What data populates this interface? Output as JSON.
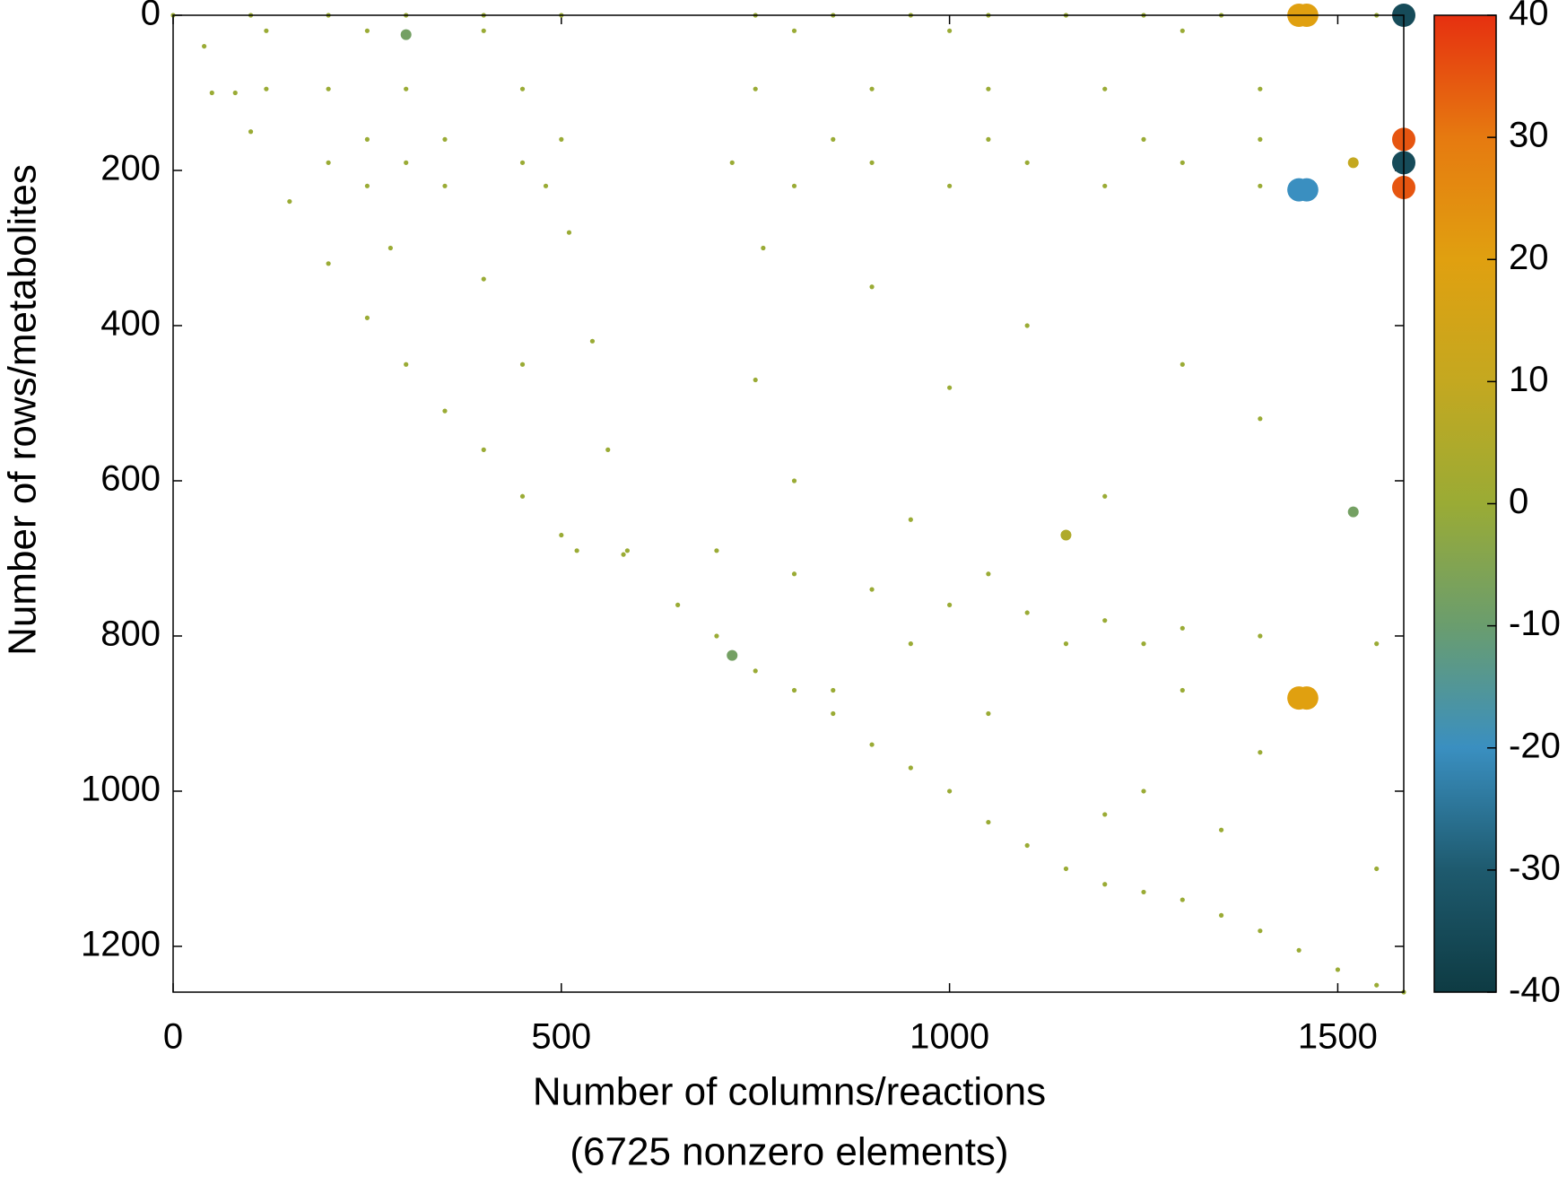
{
  "chart_data": {
    "type": "scatter",
    "xlabel": "Number of columns/reactions",
    "xlabel2": "(6725 nonzero elements)",
    "ylabel": "Number of rows/metabolites",
    "xlim": [
      0,
      1585
    ],
    "ylim": [
      0,
      1259
    ],
    "y_inverted": true,
    "xticks": [
      0,
      500,
      1000,
      1500
    ],
    "yticks": [
      0,
      200,
      400,
      600,
      800,
      1000,
      1200
    ],
    "clim": [
      -40,
      40
    ],
    "cticks": [
      -40,
      -30,
      -20,
      -10,
      0,
      10,
      20,
      30,
      40
    ],
    "colormap": [
      "#0e3b43",
      "#1e5a6e",
      "#3a8fc0",
      "#6a9d6e",
      "#9aab35",
      "#c4a820",
      "#e0a010",
      "#e67a10",
      "#e63010"
    ],
    "series": [
      {
        "x": [
          0,
          50,
          100,
          150,
          200,
          250,
          300,
          350,
          400,
          450,
          500,
          520,
          580,
          650,
          700,
          750,
          800,
          850,
          900,
          950,
          1000,
          1050,
          1100,
          1150,
          1200,
          1250,
          1300,
          1350,
          1400,
          1450,
          1500,
          1550,
          1585,
          40,
          80,
          510,
          540,
          560,
          585,
          700,
          800,
          900,
          1000,
          1100,
          1200,
          1300,
          1400,
          1550,
          100,
          200,
          300,
          400,
          500,
          750,
          850,
          950,
          1050,
          1150,
          1250,
          1350,
          1550,
          120,
          250,
          400,
          800,
          1000,
          1300,
          120,
          200,
          300,
          450,
          750,
          900,
          1050,
          1200,
          1400,
          250,
          350,
          500,
          850,
          1050,
          1250,
          1400,
          200,
          300,
          450,
          720,
          900,
          1100,
          1300,
          250,
          350,
          480,
          800,
          1000,
          1200,
          1400,
          280,
          400,
          450,
          760,
          900,
          1100,
          1300,
          750,
          1000,
          1400,
          800,
          1200,
          950,
          1050,
          1150,
          1250,
          950,
          850,
          1050,
          1300,
          1400,
          1250,
          1200,
          1550,
          1350,
          1450,
          1460,
          1585,
          1585,
          1585,
          1585,
          1450,
          1460,
          1450,
          1460,
          1520,
          1520,
          300,
          1150,
          720
        ],
        "y": [
          0,
          100,
          150,
          240,
          320,
          390,
          450,
          510,
          560,
          620,
          670,
          690,
          695,
          760,
          800,
          845,
          870,
          900,
          940,
          970,
          1000,
          1040,
          1070,
          1100,
          1120,
          1130,
          1140,
          1160,
          1180,
          1205,
          1230,
          1250,
          1259,
          40,
          100,
          280,
          420,
          560,
          690,
          690,
          720,
          740,
          760,
          770,
          780,
          790,
          800,
          810,
          0,
          0,
          0,
          0,
          0,
          0,
          0,
          0,
          0,
          0,
          0,
          0,
          0,
          20,
          20,
          20,
          20,
          20,
          20,
          95,
          95,
          95,
          95,
          95,
          95,
          95,
          95,
          95,
          160,
          160,
          160,
          160,
          160,
          160,
          160,
          190,
          190,
          190,
          190,
          190,
          190,
          190,
          220,
          220,
          220,
          220,
          220,
          220,
          220,
          300,
          340,
          450,
          300,
          350,
          400,
          450,
          470,
          480,
          520,
          600,
          620,
          650,
          720,
          810,
          810,
          810,
          870,
          900,
          870,
          950,
          1000,
          1030,
          1100,
          1050,
          0,
          0,
          0,
          160,
          190,
          222,
          225,
          225,
          880,
          880,
          640,
          190,
          25,
          670,
          825
        ],
        "values": [
          0,
          0,
          0,
          0,
          0,
          0,
          0,
          0,
          0,
          0,
          0,
          0,
          0,
          0,
          0,
          0,
          0,
          0,
          0,
          0,
          0,
          0,
          0,
          0,
          0,
          0,
          0,
          0,
          0,
          0,
          0,
          0,
          0,
          0,
          0,
          0,
          0,
          0,
          0,
          0,
          0,
          0,
          0,
          0,
          0,
          0,
          0,
          0,
          0,
          0,
          0,
          0,
          0,
          0,
          0,
          0,
          0,
          0,
          0,
          0,
          0,
          0,
          0,
          0,
          0,
          0,
          0,
          0,
          0,
          0,
          0,
          0,
          0,
          0,
          0,
          0,
          0,
          0,
          0,
          0,
          0,
          0,
          0,
          0,
          0,
          0,
          0,
          0,
          0,
          0,
          0,
          0,
          0,
          0,
          0,
          0,
          0,
          0,
          0,
          0,
          0,
          0,
          0,
          0,
          0,
          0,
          0,
          0,
          0,
          0,
          0,
          0,
          0,
          0,
          0,
          0,
          0,
          0,
          0,
          0,
          0,
          0,
          20,
          20,
          -35,
          35,
          -35,
          35,
          -20,
          -20,
          20,
          20,
          -8,
          10,
          -8,
          5,
          -8
        ]
      }
    ]
  }
}
